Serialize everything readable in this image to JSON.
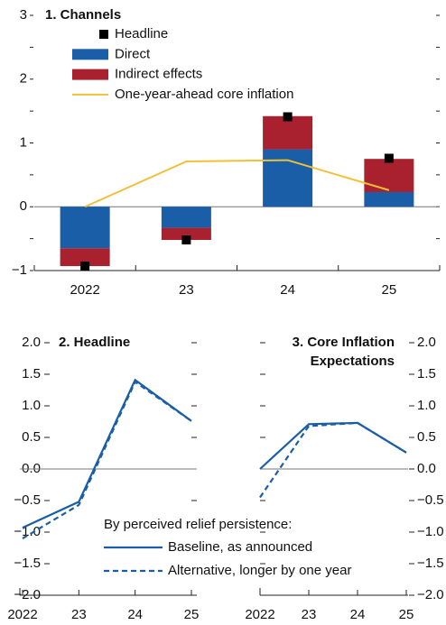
{
  "chart_data": [
    {
      "type": "bar",
      "title": "1. Channels",
      "categories": [
        "2022",
        "23",
        "24",
        "25"
      ],
      "series": [
        {
          "name": "Headline",
          "kind": "marker",
          "color": "#000000",
          "values": [
            -0.93,
            -0.52,
            1.41,
            0.76
          ]
        },
        {
          "name": "Direct",
          "kind": "stacked",
          "color": "#1a5ea8",
          "values": [
            -0.65,
            -0.33,
            0.9,
            0.23
          ]
        },
        {
          "name": "Indirect effects",
          "kind": "stacked",
          "color": "#a9202f",
          "values": [
            -0.28,
            -0.19,
            0.52,
            0.52
          ]
        },
        {
          "name": "One-year-ahead core inflation",
          "kind": "line",
          "color": "#f2c037",
          "values": [
            0,
            0.71,
            0.73,
            0.26
          ]
        }
      ],
      "ylim": [
        -1,
        3
      ],
      "yticks": [
        3,
        2,
        1,
        0,
        {
          "value": -1,
          "label": "−1"
        }
      ],
      "yticks_minor": [
        2.5,
        1.5,
        0.5,
        -0.5
      ]
    },
    {
      "type": "line",
      "title": "2. Headline",
      "x": [
        2022,
        2023,
        2024,
        2025
      ],
      "xlim": [
        2022,
        2025
      ],
      "xticks": [
        2022,
        {
          "value": 2023,
          "label": "23"
        },
        {
          "value": 2024,
          "label": "24"
        },
        {
          "value": 2025,
          "label": "25"
        }
      ],
      "ylim": [
        -2,
        2
      ],
      "yticks": [
        {
          "value": 2,
          "label": "2.0"
        },
        {
          "value": 1.5,
          "label": "1.5"
        },
        {
          "value": 1,
          "label": "1.0"
        },
        {
          "value": 0.5,
          "label": "0.5"
        },
        {
          "value": 0,
          "label": "0.0"
        },
        {
          "value": -0.5,
          "label": "−0.5"
        },
        {
          "value": -1,
          "label": "−1.0"
        },
        {
          "value": -1.5,
          "label": "−1.5"
        },
        {
          "value": -2,
          "label": "−2.0"
        }
      ],
      "legend_title": "By perceived relief persistence:",
      "series": [
        {
          "name": "Baseline, as announced",
          "color": "#1a5ea8",
          "dashed": false,
          "values": [
            -0.93,
            -0.52,
            1.41,
            0.76
          ]
        },
        {
          "name": "Alternative, longer by one year",
          "color": "#1a5ea8",
          "dashed": true,
          "values": [
            -1.1,
            -0.57,
            1.38,
            0.76
          ]
        }
      ]
    },
    {
      "type": "line",
      "title": [
        "3. Core Inflation",
        "Expectations"
      ],
      "x": [
        2022,
        2023,
        2024,
        2025
      ],
      "xlim": [
        2022,
        2025
      ],
      "xticks": [
        2022,
        {
          "value": 2023,
          "label": "23"
        },
        {
          "value": 2024,
          "label": "24"
        },
        {
          "value": 2025,
          "label": "25"
        }
      ],
      "ylim": [
        -2,
        2
      ],
      "yticks": [
        {
          "value": 2,
          "label": "2.0"
        },
        {
          "value": 1.5,
          "label": "1.5"
        },
        {
          "value": 1,
          "label": "1.0"
        },
        {
          "value": 0.5,
          "label": "0.5"
        },
        {
          "value": 0,
          "label": "0.0"
        },
        {
          "value": -0.5,
          "label": "−0.5"
        },
        {
          "value": -1,
          "label": "−1.0"
        },
        {
          "value": -1.5,
          "label": "−1.5"
        },
        {
          "value": -2,
          "label": "−2.0"
        }
      ],
      "series": [
        {
          "color": "#1a5ea8",
          "dashed": false,
          "values": [
            0,
            0.71,
            0.73,
            0.26
          ]
        },
        {
          "color": "#1a5ea8",
          "dashed": true,
          "values": [
            -0.45,
            0.68,
            0.73,
            0.26
          ]
        }
      ]
    }
  ]
}
